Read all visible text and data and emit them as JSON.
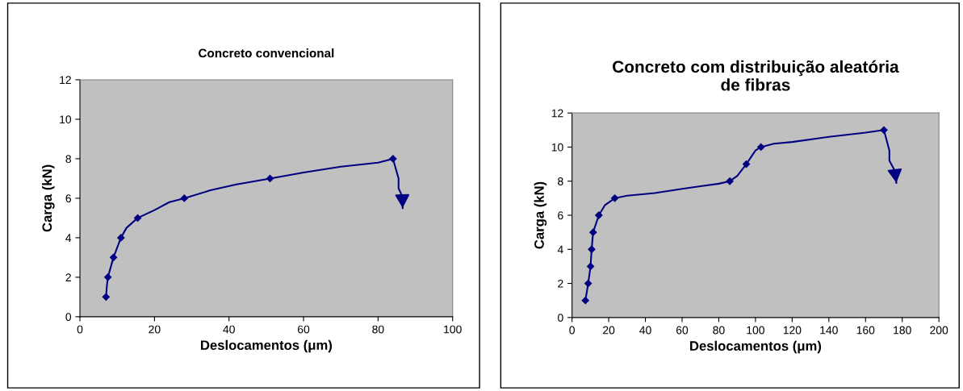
{
  "chart_data": [
    {
      "type": "line",
      "title": "Concreto convencional",
      "xlabel": "Deslocamentos (μm)",
      "ylabel": "Carga (kN)",
      "xlim": [
        0,
        100
      ],
      "xticks": [
        0,
        20,
        40,
        60,
        80,
        100
      ],
      "ylim": [
        0,
        12
      ],
      "yticks": [
        0,
        2,
        4,
        6,
        8,
        10,
        12
      ],
      "grid": false,
      "legend": false,
      "series": [
        {
          "type": "line",
          "color": "#000080",
          "marker": "none",
          "x": [
            7,
            7.2,
            7.5,
            9,
            10,
            11,
            12.5,
            15.5,
            20,
            24,
            28,
            35,
            42,
            51,
            60,
            70,
            80,
            84,
            85.5,
            85.5,
            86.5,
            86.6
          ],
          "values": [
            1,
            1.5,
            2,
            3,
            3.5,
            4,
            4.5,
            5,
            5.4,
            5.8,
            6,
            6.4,
            6.7,
            7,
            7.3,
            7.6,
            7.8,
            8,
            7,
            6.5,
            6.1,
            5.5
          ]
        },
        {
          "type": "scatter",
          "color": "#000080",
          "marker": "diamond",
          "x": [
            7,
            7.5,
            9,
            11,
            15.5,
            28,
            51,
            84
          ],
          "values": [
            1,
            2,
            3,
            4,
            5,
            6,
            7,
            8
          ]
        }
      ]
    },
    {
      "type": "line",
      "title": "Concreto com distribuição aleatória\nde fibras",
      "xlabel": "Deslocamentos (μm)",
      "ylabel": "Carga (kN)",
      "xlim": [
        0,
        200
      ],
      "xticks": [
        0,
        20,
        40,
        60,
        80,
        100,
        120,
        140,
        160,
        180,
        200
      ],
      "ylim": [
        0,
        12
      ],
      "yticks": [
        0,
        2,
        4,
        6,
        8,
        10,
        12
      ],
      "grid": false,
      "legend": false,
      "series": [
        {
          "type": "line",
          "color": "#000080",
          "marker": "none",
          "x": [
            7.3,
            8.8,
            10.1,
            10.7,
            11.5,
            14.6,
            18,
            23.3,
            30,
            45,
            60,
            70,
            80,
            86,
            90,
            95,
            100,
            103,
            110,
            120,
            140,
            160,
            170,
            173,
            173,
            176,
            176.8
          ],
          "values": [
            1,
            2,
            3,
            4,
            5,
            6,
            6.6,
            7,
            7.15,
            7.3,
            7.55,
            7.7,
            7.85,
            8,
            8.3,
            9,
            9.8,
            10,
            10.2,
            10.3,
            10.6,
            10.85,
            11,
            9.8,
            9.2,
            8.6,
            7.9
          ]
        },
        {
          "type": "scatter",
          "color": "#000080",
          "marker": "diamond",
          "x": [
            7.3,
            8.8,
            10.1,
            10.7,
            11.5,
            14.6,
            23.3,
            86,
            95,
            103,
            170
          ],
          "values": [
            1,
            2,
            3,
            4,
            5,
            6,
            7,
            8,
            9,
            10,
            11
          ]
        }
      ]
    }
  ]
}
